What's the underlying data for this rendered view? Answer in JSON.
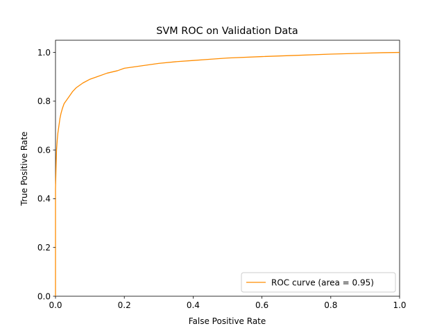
{
  "chart_data": {
    "type": "line",
    "title": "SVM ROC on Validation Data",
    "xlabel": "False Positive Rate",
    "ylabel": "True Positive Rate",
    "xlim": [
      0.0,
      1.0
    ],
    "ylim": [
      0.0,
      1.05
    ],
    "xticks": [
      0.0,
      0.2,
      0.4,
      0.6,
      0.8,
      1.0
    ],
    "xtick_labels": [
      "0.0",
      "0.2",
      "0.4",
      "0.6",
      "0.8",
      "1.0"
    ],
    "yticks": [
      0.0,
      0.2,
      0.4,
      0.6,
      0.8,
      1.0
    ],
    "ytick_labels": [
      "0.0",
      "0.2",
      "0.4",
      "0.6",
      "0.8",
      "1.0"
    ],
    "grid": false,
    "legend_position": "lower-right",
    "series": [
      {
        "name": "ROC curve (area = 0.95)",
        "color": "#ff8c00",
        "x": [
          0.0,
          0.0,
          0.002,
          0.003,
          0.005,
          0.007,
          0.01,
          0.013,
          0.016,
          0.02,
          0.025,
          0.03,
          0.04,
          0.05,
          0.06,
          0.07,
          0.08,
          0.1,
          0.12,
          0.15,
          0.18,
          0.2,
          0.25,
          0.3,
          0.35,
          0.4,
          0.45,
          0.5,
          0.6,
          0.7,
          0.8,
          0.9,
          0.95,
          1.0
        ],
        "y": [
          0.0,
          0.44,
          0.55,
          0.6,
          0.64,
          0.67,
          0.7,
          0.73,
          0.75,
          0.77,
          0.79,
          0.8,
          0.82,
          0.84,
          0.855,
          0.865,
          0.875,
          0.89,
          0.9,
          0.915,
          0.925,
          0.935,
          0.945,
          0.955,
          0.962,
          0.967,
          0.972,
          0.977,
          0.983,
          0.988,
          0.993,
          0.997,
          0.999,
          1.0
        ]
      }
    ]
  }
}
